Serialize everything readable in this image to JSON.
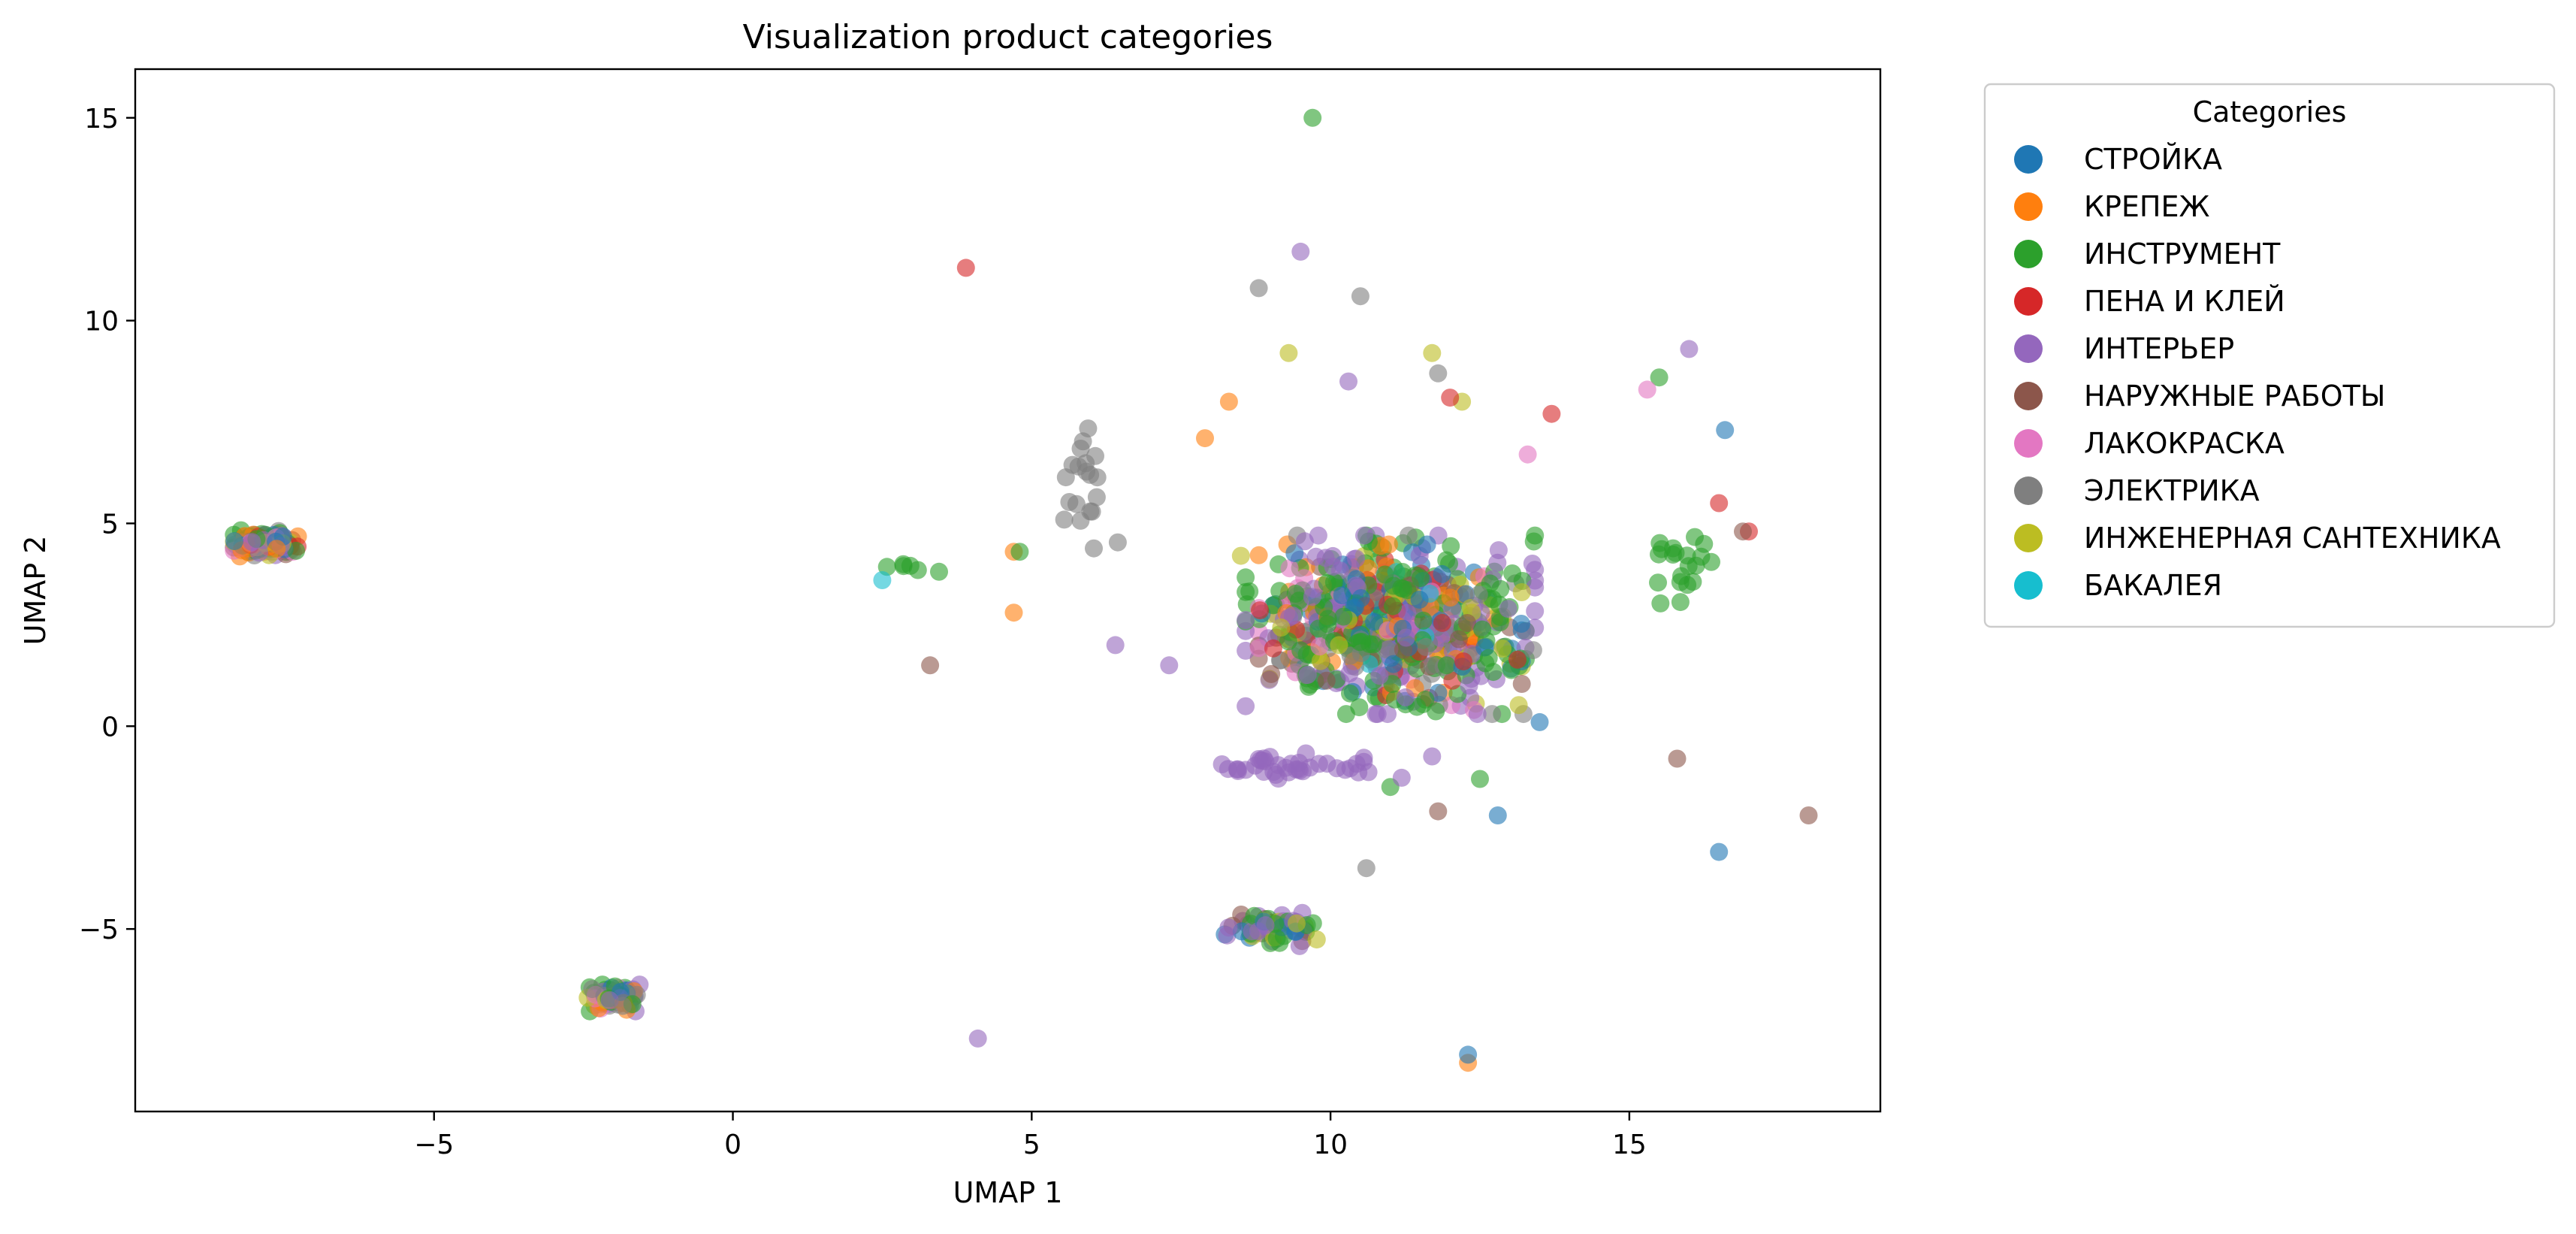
{
  "chart_data": {
    "type": "scatter",
    "title": "Visualization product categories",
    "xlabel": "UMAP 1",
    "ylabel": "UMAP 2",
    "xlim": [
      -10,
      19.2
    ],
    "ylim": [
      -9.5,
      16.2
    ],
    "xticks": [
      -5,
      0,
      5,
      10,
      15
    ],
    "yticks": [
      -5,
      0,
      5,
      10,
      15
    ],
    "grid": false,
    "legend_title": "Categories",
    "legend_position": "outside-upper-right",
    "point_alpha": 0.6,
    "series": [
      {
        "name": "СТРОЙКА",
        "color": "#1f77b4",
        "clusters": [
          {
            "center": [
              -7.8,
              4.5
            ],
            "spread": [
              0.5,
              0.3
            ],
            "count": 25
          },
          {
            "center": [
              -2.0,
              -6.7
            ],
            "spread": [
              0.4,
              0.3
            ],
            "count": 12
          },
          {
            "center": [
              11.0,
              2.5
            ],
            "spread": [
              2.0,
              1.8
            ],
            "count": 80
          },
          {
            "center": [
              9.0,
              -5.0
            ],
            "spread": [
              0.7,
              0.4
            ],
            "count": 8
          }
        ],
        "points": [
          [
            13.5,
            0.1
          ],
          [
            12.8,
            -2.2
          ],
          [
            16.6,
            7.3
          ],
          [
            12.3,
            -8.1
          ],
          [
            16.5,
            -3.1
          ]
        ]
      },
      {
        "name": "КРЕПЕЖ",
        "color": "#ff7f0e",
        "clusters": [
          {
            "center": [
              -7.8,
              4.5
            ],
            "spread": [
              0.5,
              0.3
            ],
            "count": 25
          },
          {
            "center": [
              -2.0,
              -6.7
            ],
            "spread": [
              0.4,
              0.3
            ],
            "count": 10
          },
          {
            "center": [
              11.0,
              2.5
            ],
            "spread": [
              2.0,
              1.8
            ],
            "count": 50
          }
        ],
        "points": [
          [
            4.7,
            2.8
          ],
          [
            4.7,
            4.3
          ],
          [
            7.9,
            7.1
          ],
          [
            8.3,
            8.0
          ],
          [
            12.3,
            -8.3
          ]
        ]
      },
      {
        "name": "ИНСТРУМЕНТ",
        "color": "#2ca02c",
        "clusters": [
          {
            "center": [
              -7.8,
              4.5
            ],
            "spread": [
              0.5,
              0.3
            ],
            "count": 30
          },
          {
            "center": [
              -2.0,
              -6.7
            ],
            "spread": [
              0.4,
              0.3
            ],
            "count": 20
          },
          {
            "center": [
              11.0,
              2.5
            ],
            "spread": [
              2.2,
              2.0
            ],
            "count": 210
          },
          {
            "center": [
              9.0,
              -5.0
            ],
            "spread": [
              0.7,
              0.4
            ],
            "count": 15
          },
          {
            "center": [
              15.8,
              4.0
            ],
            "spread": [
              0.6,
              1.2
            ],
            "count": 20
          },
          {
            "center": [
              2.9,
              3.9
            ],
            "spread": [
              0.5,
              0.1
            ],
            "count": 6
          }
        ],
        "points": [
          [
            9.7,
            15.0
          ],
          [
            4.8,
            4.3
          ],
          [
            15.5,
            8.6
          ],
          [
            11.0,
            -1.5
          ],
          [
            12.5,
            -1.3
          ]
        ]
      },
      {
        "name": "ПЕНА И  КЛЕЙ",
        "color": "#d62728",
        "clusters": [
          {
            "center": [
              -7.8,
              4.5
            ],
            "spread": [
              0.5,
              0.3
            ],
            "count": 8
          },
          {
            "center": [
              11.0,
              2.5
            ],
            "spread": [
              2.0,
              1.8
            ],
            "count": 40
          }
        ],
        "points": [
          [
            3.9,
            11.3
          ],
          [
            16.5,
            5.5
          ],
          [
            17.0,
            4.8
          ],
          [
            12.0,
            8.1
          ],
          [
            13.7,
            7.7
          ]
        ]
      },
      {
        "name": "ИНТЕРЬЕР",
        "color": "#9467bd",
        "clusters": [
          {
            "center": [
              -7.8,
              4.5
            ],
            "spread": [
              0.5,
              0.3
            ],
            "count": 30
          },
          {
            "center": [
              -2.0,
              -6.7
            ],
            "spread": [
              0.4,
              0.3
            ],
            "count": 15
          },
          {
            "center": [
              11.0,
              2.5
            ],
            "spread": [
              2.2,
              2.0
            ],
            "count": 140
          },
          {
            "center": [
              9.0,
              -5.0
            ],
            "spread": [
              0.7,
              0.4
            ],
            "count": 25
          },
          {
            "center": [
              9.5,
              -1.0
            ],
            "spread": [
              2.0,
              0.3
            ],
            "count": 40
          }
        ],
        "points": [
          [
            9.5,
            11.7
          ],
          [
            4.1,
            -7.7
          ],
          [
            6.4,
            2.0
          ],
          [
            16.0,
            9.3
          ],
          [
            10.3,
            8.5
          ],
          [
            7.3,
            1.5
          ]
        ]
      },
      {
        "name": "НАРУЖНЫЕ РАБОТЫ",
        "color": "#8c564b",
        "clusters": [
          {
            "center": [
              -7.8,
              4.5
            ],
            "spread": [
              0.5,
              0.3
            ],
            "count": 8
          },
          {
            "center": [
              11.0,
              2.5
            ],
            "spread": [
              2.0,
              1.8
            ],
            "count": 30
          },
          {
            "center": [
              9.0,
              -5.0
            ],
            "spread": [
              0.7,
              0.4
            ],
            "count": 6
          }
        ],
        "points": [
          [
            3.3,
            1.5
          ],
          [
            18.0,
            -2.2
          ],
          [
            11.8,
            -2.1
          ],
          [
            15.8,
            -0.8
          ],
          [
            16.9,
            4.8
          ]
        ]
      },
      {
        "name": "ЛАКОКРАСКА",
        "color": "#e377c2",
        "clusters": [
          {
            "center": [
              -7.8,
              4.5
            ],
            "spread": [
              0.5,
              0.3
            ],
            "count": 15
          },
          {
            "center": [
              -2.0,
              -6.7
            ],
            "spread": [
              0.4,
              0.3
            ],
            "count": 10
          },
          {
            "center": [
              11.0,
              2.5
            ],
            "spread": [
              2.0,
              1.8
            ],
            "count": 30
          }
        ],
        "points": [
          [
            15.3,
            8.3
          ],
          [
            13.3,
            6.7
          ],
          [
            12.4,
            0.4
          ]
        ]
      },
      {
        "name": "ЭЛЕКТРИКА",
        "color": "#7f7f7f",
        "clusters": [
          {
            "center": [
              -7.8,
              4.5
            ],
            "spread": [
              0.5,
              0.3
            ],
            "count": 15
          },
          {
            "center": [
              -2.0,
              -6.7
            ],
            "spread": [
              0.4,
              0.3
            ],
            "count": 10
          },
          {
            "center": [
              11.0,
              2.5
            ],
            "spread": [
              2.2,
              2.0
            ],
            "count": 60
          },
          {
            "center": [
              6.0,
              6.0
            ],
            "spread": [
              0.5,
              1.5
            ],
            "count": 20
          }
        ],
        "points": [
          [
            8.8,
            10.8
          ],
          [
            10.5,
            10.6
          ],
          [
            11.8,
            8.7
          ],
          [
            10.6,
            -3.5
          ]
        ]
      },
      {
        "name": "ИНЖЕНЕРНАЯ САНТЕХНИКА",
        "color": "#bcbd22",
        "clusters": [
          {
            "center": [
              -7.8,
              4.5
            ],
            "spread": [
              0.5,
              0.3
            ],
            "count": 15
          },
          {
            "center": [
              -2.0,
              -6.7
            ],
            "spread": [
              0.4,
              0.3
            ],
            "count": 8
          },
          {
            "center": [
              11.0,
              2.5
            ],
            "spread": [
              2.0,
              1.8
            ],
            "count": 45
          },
          {
            "center": [
              9.0,
              -5.0
            ],
            "spread": [
              0.7,
              0.4
            ],
            "count": 8
          }
        ],
        "points": [
          [
            9.3,
            9.2
          ],
          [
            11.7,
            9.2
          ],
          [
            12.2,
            8.0
          ],
          [
            8.5,
            4.2
          ]
        ]
      },
      {
        "name": "БАКАЛЕЯ",
        "color": "#17becf",
        "clusters": [
          {
            "center": [
              11.0,
              2.5
            ],
            "spread": [
              1.5,
              1.2
            ],
            "count": 8
          }
        ],
        "points": [
          [
            2.5,
            3.6
          ],
          [
            11.1,
            3.8
          ]
        ]
      }
    ]
  }
}
